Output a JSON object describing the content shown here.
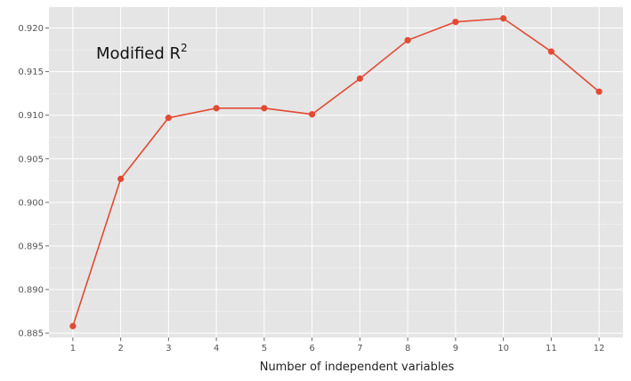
{
  "chart_data": {
    "type": "line",
    "title": "",
    "xlabel": "Number of independent variables",
    "ylabel": "",
    "x": [
      1,
      2,
      3,
      4,
      5,
      6,
      7,
      8,
      9,
      10,
      11,
      12
    ],
    "x_tick_labels": [
      "1",
      "2",
      "3",
      "4",
      "5",
      "6",
      "7",
      "8",
      "9",
      "10",
      "11",
      "12"
    ],
    "y_ticks": [
      0.885,
      0.89,
      0.895,
      0.9,
      0.905,
      0.91,
      0.915,
      0.92
    ],
    "y_tick_labels": [
      "0.885",
      "0.890",
      "0.895",
      "0.900",
      "0.905",
      "0.910",
      "0.915",
      "0.920"
    ],
    "series": [
      {
        "values": [
          0.8858,
          0.9027,
          0.9097,
          0.9108,
          0.9108,
          0.9101,
          0.9142,
          0.9186,
          0.9207,
          0.9211,
          0.9173,
          0.9127
        ],
        "color": "#e24a33"
      }
    ],
    "annotation": {
      "prefix": "Modified R",
      "superscript": "2"
    },
    "ylim": [
      0.8845,
      0.9224
    ],
    "xlim": [
      0.5,
      12.5
    ],
    "grid": true,
    "background": "#e5e5e5",
    "gridline_color": "#ffffff"
  }
}
